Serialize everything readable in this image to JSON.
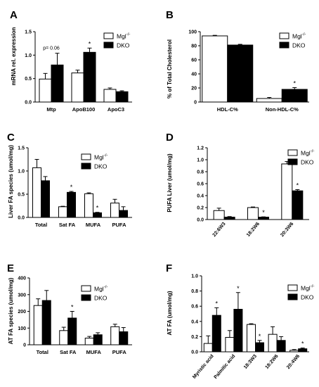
{
  "colors": {
    "wt": "#ffffff",
    "dko": "#000000",
    "axis": "#000000"
  },
  "legend_labels": {
    "wt_base": "Mgl",
    "wt_sup": "-/-",
    "dko": "DKO"
  },
  "chart_data": [
    {
      "panel": "A",
      "type": "bar",
      "ylabel": "mRNA rel. expression",
      "ylim": [
        0,
        1.5
      ],
      "yticks": [
        "0.0",
        "0.5",
        "1.0",
        "1.5"
      ],
      "categories": [
        "Mtp",
        "ApoB100",
        "ApoC3"
      ],
      "rotate": false,
      "series": [
        {
          "name": "Mgl-/-",
          "values": [
            0.49,
            0.62,
            0.27
          ],
          "errors": [
            0.12,
            0.06,
            0.03
          ]
        },
        {
          "name": "DKO",
          "values": [
            0.79,
            1.06,
            0.22
          ],
          "errors": [
            0.25,
            0.09,
            0.02
          ]
        }
      ],
      "annotations": [
        {
          "text": "p= 0.06",
          "cat": 0,
          "y": 1.12
        },
        {
          "text": "*",
          "cat": 1,
          "series": 1
        }
      ]
    },
    {
      "panel": "B",
      "type": "bar",
      "ylabel": "% of Total Cholesterol",
      "ylim": [
        0,
        100
      ],
      "yticks": [
        "0",
        "20",
        "40",
        "60",
        "80",
        "100"
      ],
      "categories": [
        "HDL-C%",
        "Non-HDL-C%"
      ],
      "rotate": false,
      "series": [
        {
          "name": "Mgl-/-",
          "values": [
            94,
            5
          ],
          "errors": [
            0.8,
            1.5
          ]
        },
        {
          "name": "DKO",
          "values": [
            81,
            18
          ],
          "errors": [
            1.0,
            2.5
          ]
        }
      ],
      "annotations": [
        {
          "text": "*",
          "cat": 1,
          "series": 1
        }
      ]
    },
    {
      "panel": "C",
      "type": "bar",
      "ylabel": "Liver FA species (umol/mg)",
      "ylim": [
        0,
        1.5
      ],
      "yticks": [
        "0.0",
        "0.5",
        "1.0",
        "1.5"
      ],
      "categories": [
        "Total",
        "Sat FA",
        "MUFA",
        "PUFA"
      ],
      "rotate": false,
      "series": [
        {
          "name": "Mgl-/-",
          "values": [
            1.07,
            0.23,
            0.51,
            0.31
          ],
          "errors": [
            0.18,
            0.01,
            0.02,
            0.08
          ]
        },
        {
          "name": "DKO",
          "values": [
            0.79,
            0.54,
            0.1,
            0.15
          ],
          "errors": [
            0.09,
            0.02,
            0.01,
            0.08
          ]
        }
      ],
      "annotations": [
        {
          "text": "*",
          "cat": 1,
          "series": 1
        },
        {
          "text": "*",
          "cat": 2,
          "series": 1
        }
      ]
    },
    {
      "panel": "D",
      "type": "bar",
      "ylabel": "PUFA Liver (umol/mg)",
      "ylim": [
        0,
        1.2
      ],
      "yticks": [
        "0.0",
        "0.2",
        "0.4",
        "0.6",
        "0.8",
        "1.0",
        "1.2"
      ],
      "categories": [
        "22:6W3",
        "18:2W6",
        "20:3W6"
      ],
      "rotate": true,
      "series": [
        {
          "name": "Mgl-/-",
          "values": [
            0.15,
            0.2,
            0.93
          ],
          "errors": [
            0.04,
            0.01,
            0.04
          ]
        },
        {
          "name": "DKO",
          "values": [
            0.04,
            0.04,
            0.48
          ],
          "errors": [
            0.01,
            0.005,
            0.02
          ]
        }
      ],
      "annotations": [
        {
          "text": "*",
          "cat": 1,
          "series": 1
        },
        {
          "text": "*",
          "cat": 2,
          "series": 1
        }
      ]
    },
    {
      "panel": "E",
      "type": "bar",
      "ylabel": "AT FA species (umol/mg)",
      "ylim": [
        0,
        400
      ],
      "yticks": [
        "0",
        "100",
        "200",
        "300",
        "400"
      ],
      "categories": [
        "Total",
        "Sat FA",
        "MUFA",
        "PUFA"
      ],
      "rotate": false,
      "series": [
        {
          "name": "Mgl-/-",
          "values": [
            235,
            85,
            40,
            108
          ],
          "errors": [
            40,
            20,
            10,
            15
          ]
        },
        {
          "name": "DKO",
          "values": [
            265,
            160,
            60,
            78
          ],
          "errors": [
            60,
            40,
            12,
            25
          ]
        }
      ],
      "annotations": [
        {
          "text": "*",
          "cat": 1,
          "series": 1
        }
      ]
    },
    {
      "panel": "F",
      "type": "bar",
      "ylabel": "AT FA (umol/mg)",
      "ylim": [
        0,
        1.0
      ],
      "yticks": [
        "0.0",
        "0.2",
        "0.4",
        "0.6",
        "0.8",
        "1.0"
      ],
      "categories": [
        "Myristic acid",
        "Palmitic acid",
        "18:3W3",
        "18:2W6",
        "20:4W6"
      ],
      "rotate": true,
      "series": [
        {
          "name": "Mgl-/-",
          "values": [
            0.11,
            0.19,
            0.36,
            0.23,
            0.02
          ],
          "errors": [
            0.1,
            0.09,
            0.01,
            0.1,
            0.01
          ]
        },
        {
          "name": "DKO",
          "values": [
            0.48,
            0.56,
            0.12,
            0.15,
            0.04
          ],
          "errors": [
            0.1,
            0.22,
            0.03,
            0.05,
            0.01
          ]
        }
      ],
      "annotations": [
        {
          "text": "*",
          "cat": 0,
          "series": 1
        },
        {
          "text": "*",
          "cat": 1,
          "series": 1
        },
        {
          "text": "*",
          "cat": 2,
          "series": 1
        },
        {
          "text": "*",
          "cat": 4,
          "series": 1
        }
      ]
    }
  ]
}
